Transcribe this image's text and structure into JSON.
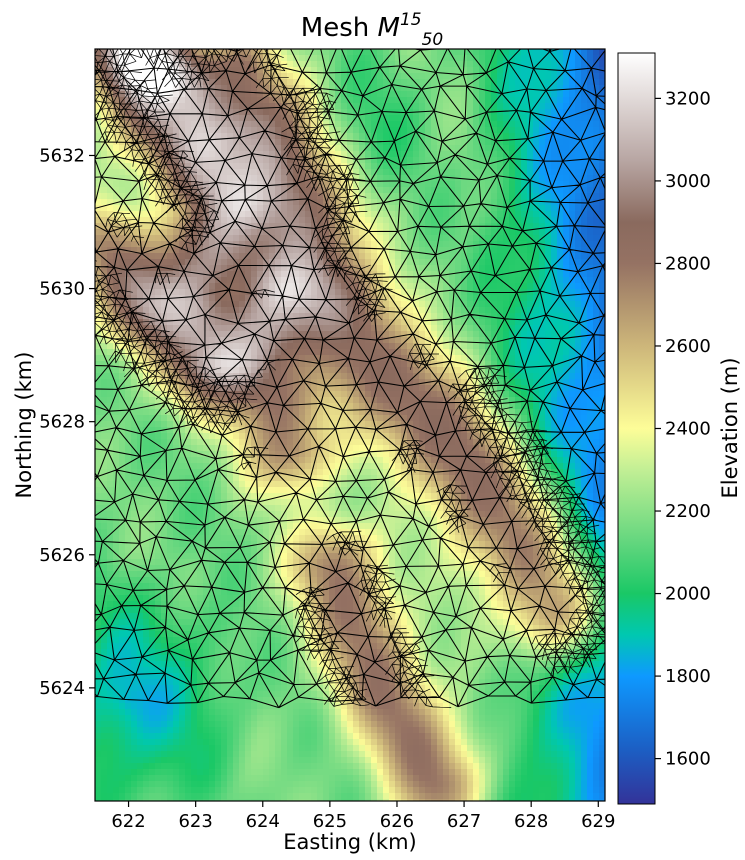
{
  "chart_data": {
    "type": "heatmap",
    "title": {
      "prefix": "Mesh ",
      "symbol": "M",
      "superscript": "15",
      "subscript": "50"
    },
    "xlabel": "Easting (km)",
    "ylabel": "Northing (km)",
    "xlim": [
      621.5,
      629.1
    ],
    "ylim": [
      5622.3,
      5633.6
    ],
    "xticks": [
      622,
      623,
      624,
      625,
      626,
      627,
      628,
      629
    ],
    "yticks": [
      5624,
      5626,
      5628,
      5630,
      5632
    ],
    "colorbar": {
      "label": "Elevation (m)",
      "range": [
        1490,
        3310
      ],
      "ticks": [
        1600,
        1800,
        2000,
        2200,
        2400,
        2600,
        2800,
        3000,
        3200
      ],
      "colormap": "terrain",
      "colors": [
        {
          "value": 1490,
          "hex": "#333399"
        },
        {
          "value": 1620,
          "hex": "#1c5ec3"
        },
        {
          "value": 1800,
          "hex": "#0e99ff"
        },
        {
          "value": 1900,
          "hex": "#00c8b0"
        },
        {
          "value": 2000,
          "hex": "#1ac866"
        },
        {
          "value": 2130,
          "hex": "#66d77f"
        },
        {
          "value": 2300,
          "hex": "#c2ef95"
        },
        {
          "value": 2400,
          "hex": "#fdfd98"
        },
        {
          "value": 2600,
          "hex": "#cdb67a"
        },
        {
          "value": 2800,
          "hex": "#957263"
        },
        {
          "value": 2900,
          "hex": "#8a6a5e"
        },
        {
          "value": 3050,
          "hex": "#b8a6a3"
        },
        {
          "value": 3310,
          "hex": "#ffffff"
        }
      ]
    },
    "mesh_line_color": "#000000",
    "mesh_ridge_color": "#e8d868"
  }
}
